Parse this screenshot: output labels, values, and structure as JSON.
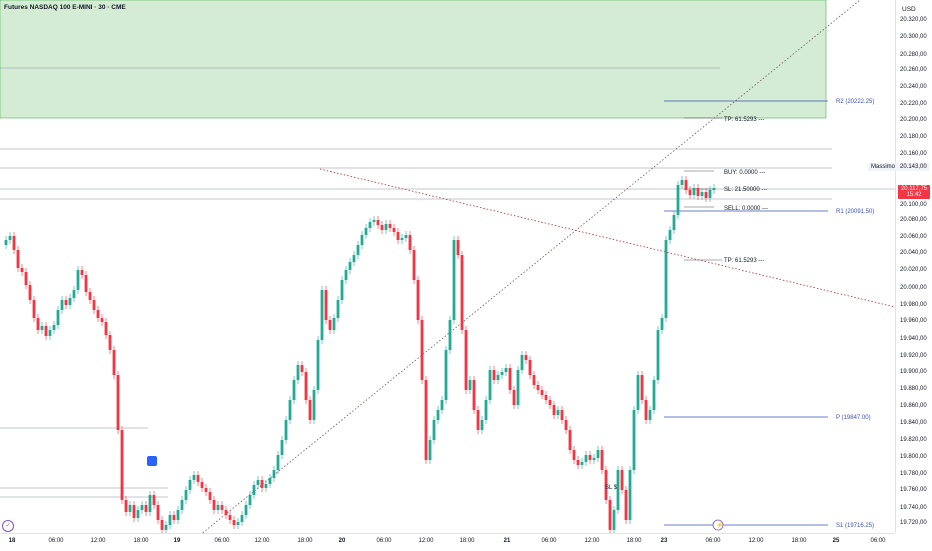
{
  "header": {
    "title": "Futures NASDAQ 100 E-MINI · 30 · CME",
    "currency": "USD"
  },
  "price_axis": {
    "ticks": [
      "20.320,00",
      "20.300,00",
      "20.280,00",
      "20.260,00",
      "20.240,00",
      "20.220,00",
      "20.200,00",
      "20.180,00",
      "20.160,00",
      "20.143,00",
      "20.100,00",
      "20.080,00",
      "20.060,00",
      "20.040,00",
      "20.020,00",
      "20.000,00",
      "19.980,00",
      "19.960,00",
      "19.940,00",
      "19.920,00",
      "19.900,00",
      "19.880,00",
      "19.860,00",
      "19.840,00",
      "19.820,00",
      "19.800,00",
      "19.780,00",
      "19.760,00",
      "19.740,00",
      "19.720,00"
    ],
    "current_price": "20.117,75",
    "countdown": "15:42",
    "massimo_label": "Massimo",
    "massimo_price": "20.143,00"
  },
  "time_axis": {
    "ticks": [
      "18",
      "06:00",
      "12:00",
      "18:00",
      "19",
      "06:00",
      "12:00",
      "18:00",
      "20",
      "06:00",
      "12:00",
      "18:00",
      "21",
      "06:00",
      "12:00",
      "18:00",
      "23",
      "06:00",
      "12:00",
      "18:00",
      "25",
      "06:00"
    ],
    "bold": [
      true,
      false,
      false,
      false,
      true,
      false,
      false,
      false,
      true,
      false,
      false,
      false,
      true,
      false,
      false,
      false,
      true,
      false,
      false,
      false,
      true,
      false
    ]
  },
  "levels": {
    "r2": "R2 (20222.25)",
    "r1": "R1 (20091.50)",
    "p": "P (19847.00)",
    "s1": "S1 (19716.25)"
  },
  "order_labels": {
    "tp_top": "TP: 61.5293 ---",
    "buy": "BUY: 0.0000 ---",
    "sl": "SL: 21.50000 ---",
    "sell": "SELL: 0.0000 ---",
    "tp_bottom": "TP: 61.5293 ---",
    "sl_small": "SL $"
  },
  "colors": {
    "up": "#22ab94",
    "down": "#f23645",
    "pivot": "#3f51b5",
    "zone": "#d4ecd4",
    "zone_border": "#4caf50"
  },
  "chart_data": {
    "type": "candlestick",
    "symbol": "Futures NASDAQ 100 E-MINI",
    "interval": "30",
    "exchange": "CME",
    "ylim": [
      19710,
      20330
    ],
    "pivots": {
      "R2": 20222.25,
      "R1": 20091.5,
      "P": 19847.0,
      "S1": 19716.25
    },
    "last_price": 20117.75,
    "high": 20143.0
  }
}
